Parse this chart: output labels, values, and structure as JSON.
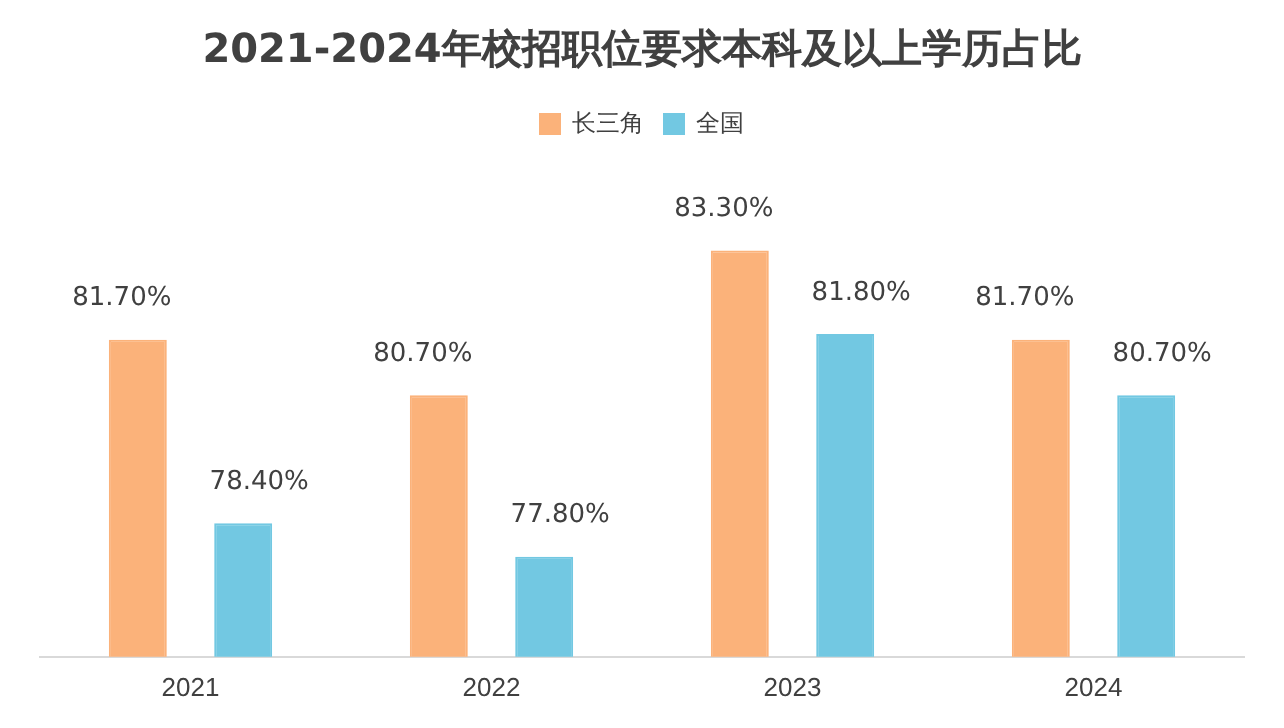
{
  "chart_data": {
    "type": "bar",
    "title": "2021-2024年校招职位要求本科及以上学历占比",
    "categories": [
      "2021",
      "2022",
      "2023",
      "2024"
    ],
    "legend": "top",
    "grid": false,
    "tick_labels": "x",
    "series": [
      {
        "name": "长三角",
        "color": "#fbb27a",
        "values": [
          81.7,
          80.7,
          83.3,
          81.7
        ],
        "value_labels": [
          "81.70%",
          "80.70%",
          "83.30%",
          "81.70%"
        ]
      },
      {
        "name": "全国",
        "color": "#72c8e2",
        "values": [
          78.4,
          77.8,
          81.8,
          80.7
        ],
        "value_labels": [
          "78.40%",
          "77.80%",
          "81.80%",
          "80.70%"
        ]
      }
    ]
  }
}
